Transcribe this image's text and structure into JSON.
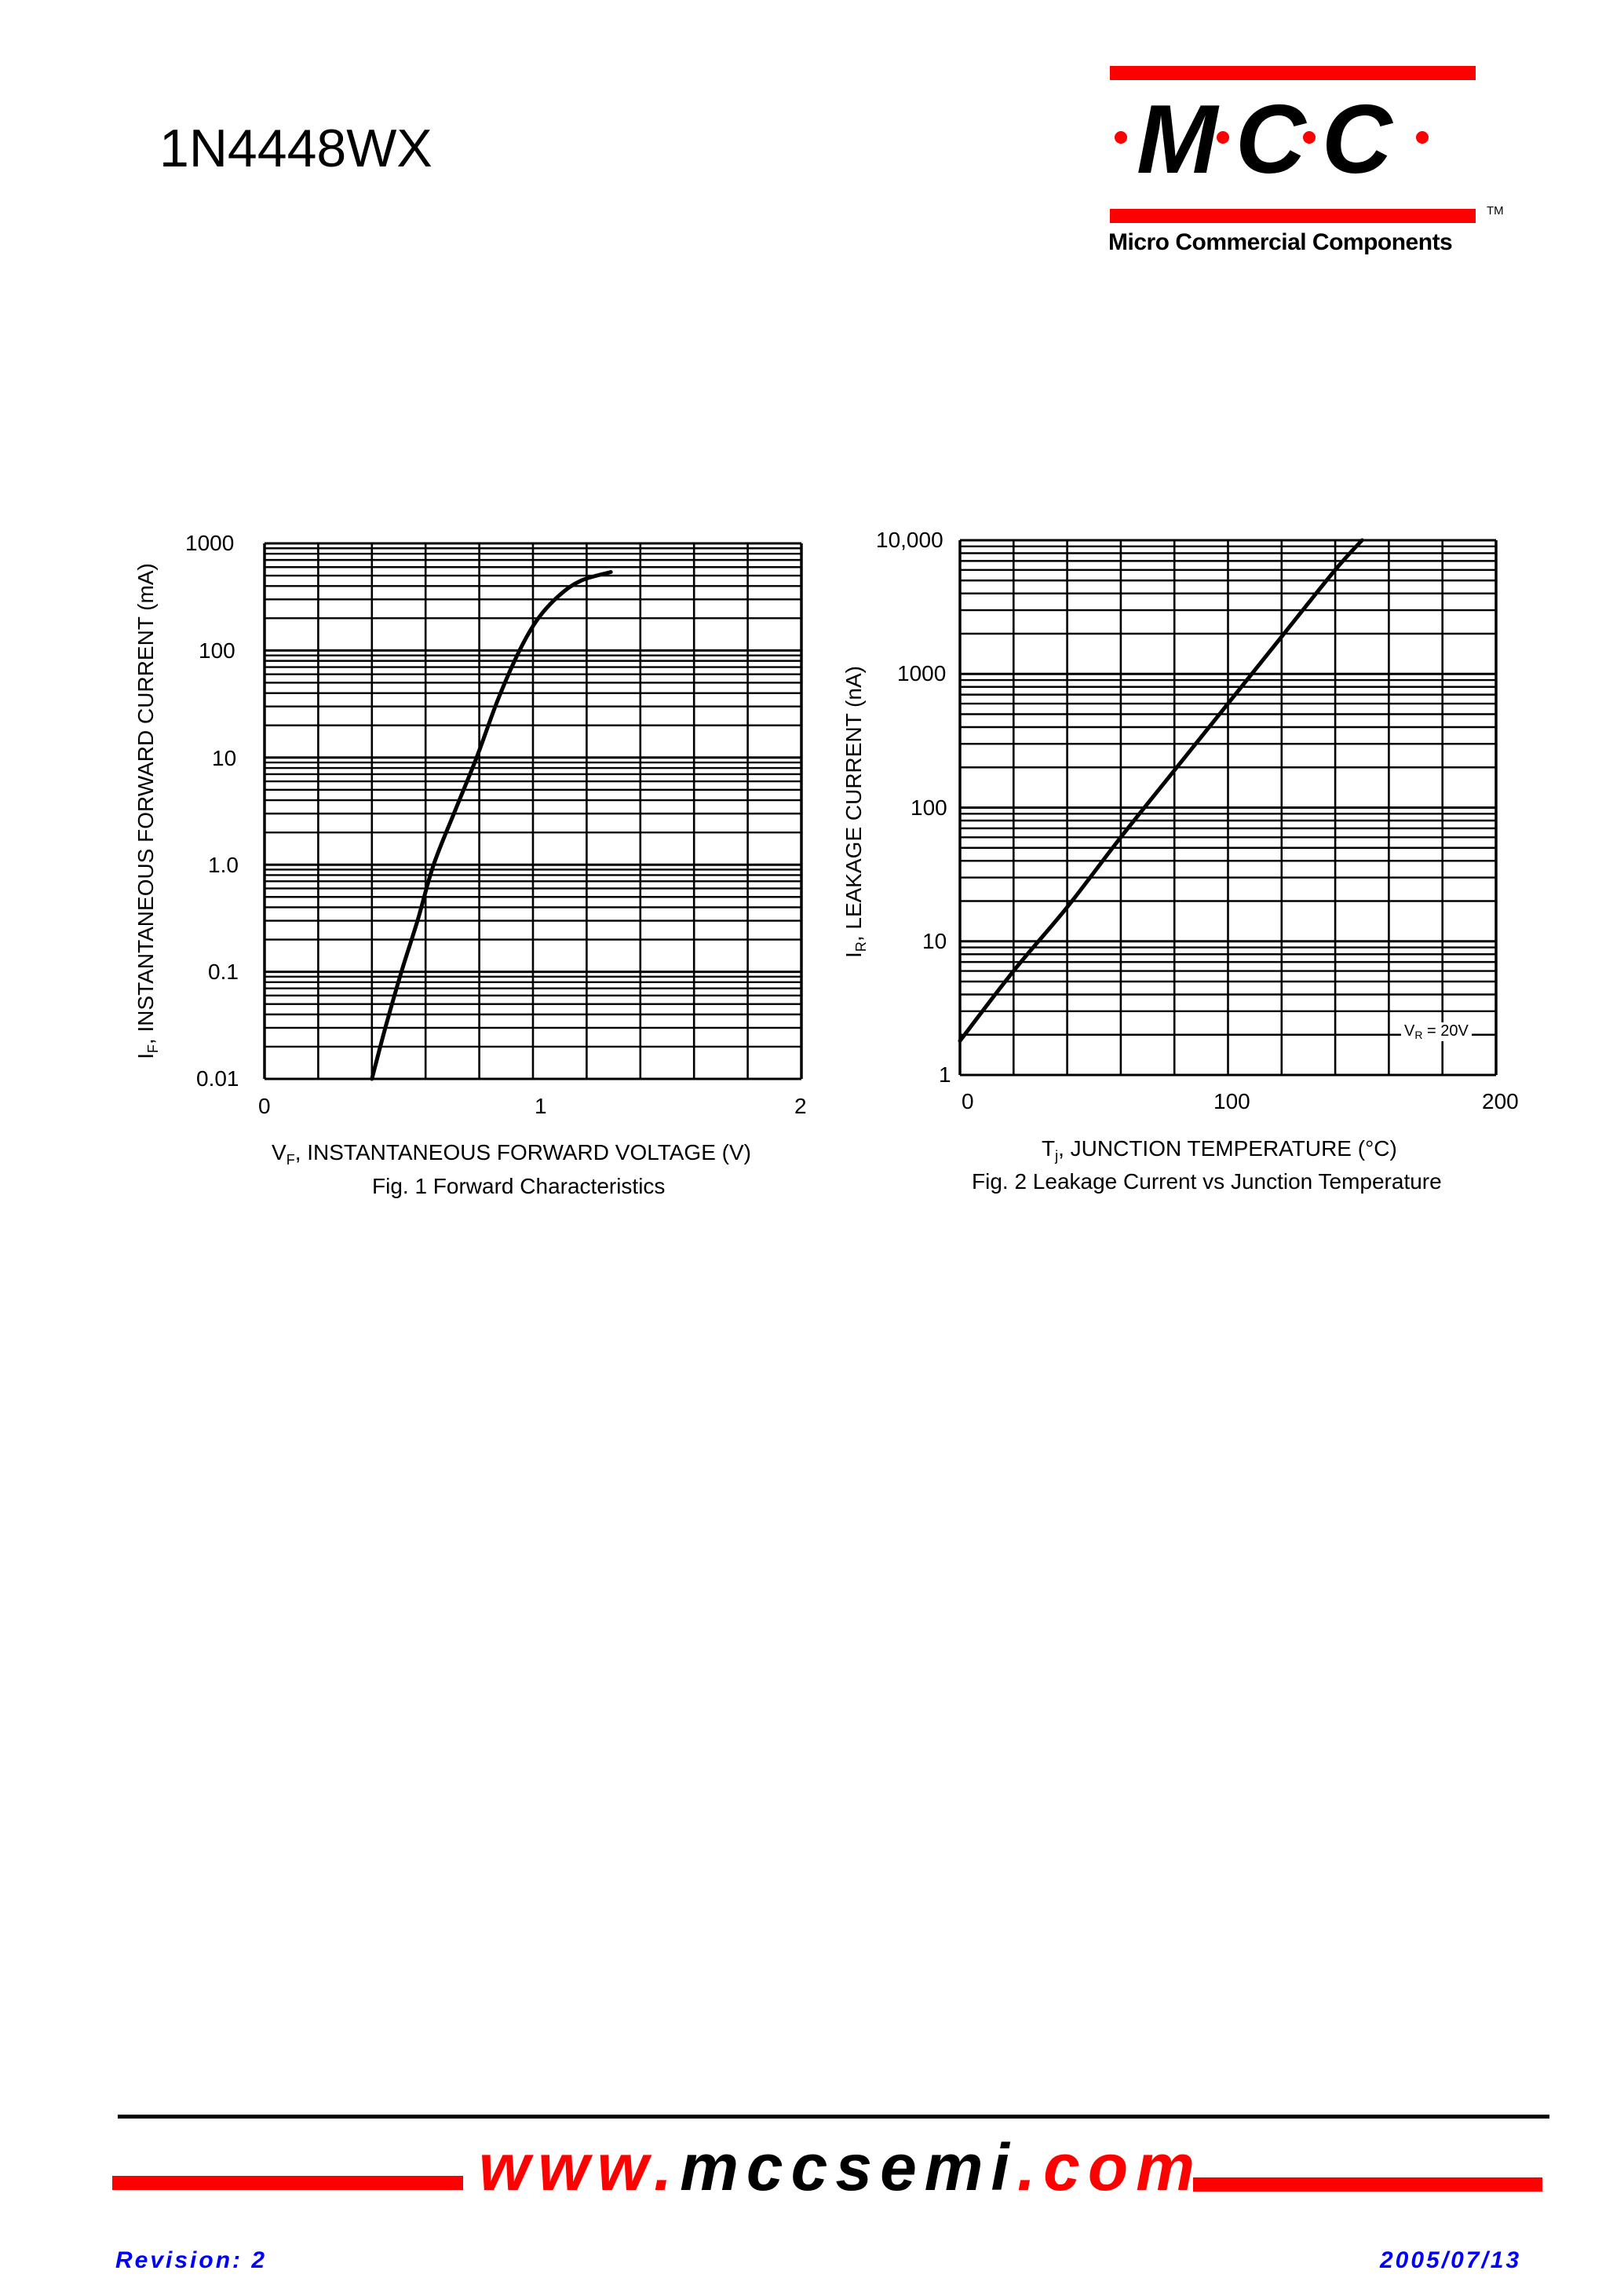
{
  "header": {
    "part_number": "1N4448WX",
    "logo": {
      "letters": [
        "M",
        "C",
        "C"
      ],
      "trademark": "TM",
      "company": "Micro Commercial Components",
      "bar_color": "#ff0000",
      "dot_color": "#ff0000"
    }
  },
  "figures": [
    {
      "y_label_main": "I",
      "y_label_sub": "F",
      "y_label_rest": ", INSTANTANEOUS FORWARD CURRENT (mA)",
      "x_label_main": "V",
      "x_label_sub": "F",
      "x_label_rest": ", INSTANTANEOUS FORWARD VOLTAGE (V)",
      "caption": "Fig. 1  Forward Characteristics",
      "y_ticks": [
        "1000",
        "100",
        "10",
        "1.0",
        "0.1",
        "0.01"
      ],
      "x_ticks": [
        "0",
        "1",
        "2"
      ]
    },
    {
      "y_label_main": "I",
      "y_label_sub": "R",
      "y_label_rest": ", LEAKAGE CURRENT (nA)",
      "x_label_main": "T",
      "x_label_sub": "j",
      "x_label_rest": ", JUNCTION TEMPERATURE (°C)",
      "caption": "Fig. 2  Leakage Current vs Junction Temperature",
      "y_ticks": [
        "10,000",
        "1000",
        "100",
        "10",
        "1"
      ],
      "x_ticks": [
        "0",
        "100",
        "200"
      ],
      "annotation_main": "V",
      "annotation_sub": "R",
      "annotation_rest": " = 20V"
    }
  ],
  "chart_data": [
    {
      "type": "line",
      "title": "Fig. 1  Forward Characteristics",
      "xlabel": "VF, INSTANTANEOUS FORWARD VOLTAGE (V)",
      "ylabel": "IF, INSTANTANEOUS FORWARD CURRENT (mA)",
      "xlim": [
        0,
        2
      ],
      "ylim": [
        0.01,
        1000
      ],
      "yscale": "log",
      "grid": true,
      "x_ticks": [
        0,
        1,
        2
      ],
      "y_ticks": [
        0.01,
        0.1,
        1.0,
        10,
        100,
        1000
      ],
      "series": [
        {
          "name": "Forward Characteristics",
          "x": [
            0.4,
            0.45,
            0.51,
            0.57,
            0.63,
            0.71,
            0.79,
            0.87,
            0.95,
            1.02,
            1.1,
            1.18,
            1.29
          ],
          "y": [
            0.01,
            0.03,
            0.1,
            0.3,
            1.0,
            3.2,
            10,
            35,
            100,
            200,
            330,
            450,
            540
          ]
        }
      ]
    },
    {
      "type": "line",
      "title": "Fig. 2  Leakage Current vs Junction Temperature",
      "xlabel": "Tj, JUNCTION TEMPERATURE (°C)",
      "ylabel": "IR, LEAKAGE CURRENT (nA)",
      "xlim": [
        0,
        200
      ],
      "ylim": [
        1,
        10000
      ],
      "yscale": "log",
      "grid": true,
      "x_ticks": [
        0,
        100,
        200
      ],
      "y_ticks": [
        1,
        10,
        100,
        1000,
        10000
      ],
      "annotations": [
        "VR = 20V"
      ],
      "series": [
        {
          "name": "VR = 20V",
          "x": [
            0,
            20,
            40,
            60,
            80,
            100,
            120,
            140,
            150
          ],
          "y": [
            1.8,
            6,
            18,
            60,
            190,
            600,
            1900,
            6000,
            10000
          ]
        }
      ]
    }
  ],
  "footer": {
    "url_prefix": "www.",
    "url_middle": "mccsemi",
    "url_suffix": ".com",
    "revision": "Revision: 2",
    "date": "2005/07/13",
    "accent_color": "#ff0000",
    "meta_color": "#0000ff"
  }
}
